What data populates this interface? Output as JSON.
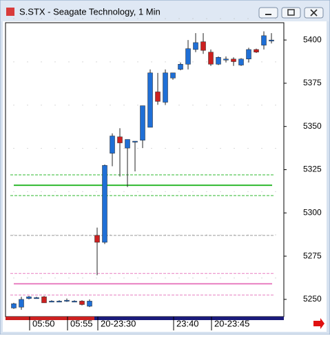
{
  "chart_data": {
    "type": "candlestick",
    "title": "S.STX - Seagate Technology, 1 Min",
    "categories": [
      null,
      null,
      "05:50",
      null,
      null,
      null,
      null,
      "05:55",
      null,
      null,
      null,
      "20-23:30",
      null,
      null,
      null,
      null,
      null,
      null,
      null,
      null,
      null,
      "23:40",
      null,
      null,
      null,
      null,
      "20-23:45",
      null,
      null,
      null,
      null,
      null,
      null,
      null,
      null
    ],
    "series": [
      {
        "up_color": "#1f6fd6",
        "down_color": "#cc2020",
        "open": [
          5245,
          5245.5,
          5250.5,
          5251,
          5251.5,
          5249,
          5249,
          5249.5,
          5249,
          5249,
          5246,
          5287,
          5283,
          5334.5,
          5344,
          5337.5,
          5341,
          5342,
          5349.5,
          5370,
          5364,
          5378,
          5383,
          5386,
          5394.5,
          5399,
          5393,
          5386,
          5389,
          5389,
          5385.5,
          5389,
          5394.5,
          5397,
          5400
        ],
        "high": [
          5248,
          5251.5,
          5252,
          5251.5,
          5252,
          5249.5,
          5249.5,
          5250.5,
          5249.5,
          5249.5,
          5250,
          5291.5,
          5328,
          5346,
          5349,
          5342.5,
          5341.5,
          5362,
          5383,
          5381,
          5383,
          5380,
          5387,
          5400,
          5404,
          5404,
          5394.5,
          5390.5,
          5390.5,
          5390,
          5389.5,
          5395.5,
          5395,
          5405,
          5404
        ],
        "low": [
          5244.5,
          5244,
          5250,
          5250.5,
          5248,
          5248.5,
          5248.5,
          5248.5,
          5248.5,
          5246.5,
          5245.5,
          5264,
          5282,
          5327,
          5321,
          5315,
          5324,
          5337.5,
          5349.5,
          5362.5,
          5362.5,
          5377,
          5382.5,
          5383,
          5393,
          5392,
          5385,
          5385.5,
          5387,
          5385,
          5385,
          5387,
          5392.5,
          5394.5,
          5398
        ],
        "close": [
          5247.5,
          5250,
          5251.5,
          5251,
          5248,
          5249,
          5249,
          5249.5,
          5249,
          5247,
          5249,
          5283,
          5327.5,
          5344.5,
          5340.5,
          5342.5,
          5341.5,
          5362,
          5381,
          5364.5,
          5381,
          5381,
          5386,
          5395,
          5398.5,
          5394,
          5386,
          5390,
          5389,
          5387.5,
          5389,
          5394.5,
          5393,
          5402.5,
          5400
        ]
      }
    ],
    "levels": [
      {
        "value": 5322,
        "color": "#2db82d",
        "dash": true
      },
      {
        "value": 5316,
        "color": "#2db82d",
        "dash": false
      },
      {
        "value": 5310,
        "color": "#2db82d",
        "dash": true
      },
      {
        "value": 5287,
        "color": "#9a9a9a",
        "dash": true
      },
      {
        "value": 5265,
        "color": "#e87fc0",
        "dash": true
      },
      {
        "value": 5259,
        "color": "#e87fc0",
        "dash": false
      },
      {
        "value": 5252.5,
        "color": "#e87fc0",
        "dash": true
      }
    ],
    "ylim": [
      5240,
      5410
    ],
    "yticks": [
      5250,
      5275,
      5300,
      5325,
      5350,
      5375,
      5400
    ]
  }
}
